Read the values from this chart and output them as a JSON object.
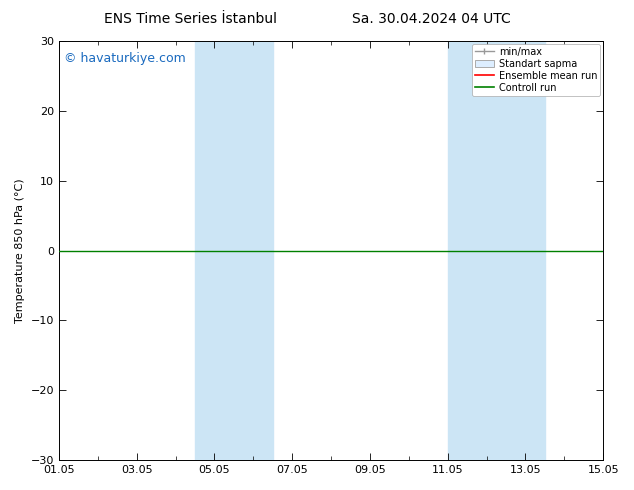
{
  "title_left": "ENS Time Series İstanbul",
  "title_right": "Sa. 30.04.2024 04 UTC",
  "ylabel": "Temperature 850 hPa (°C)",
  "watermark": "© havaturkiye.com",
  "ylim": [
    -30,
    30
  ],
  "yticks": [
    -30,
    -20,
    -10,
    0,
    10,
    20,
    30
  ],
  "xtick_labels": [
    "01.05",
    "03.05",
    "05.05",
    "07.05",
    "09.05",
    "11.05",
    "13.05",
    "15.05"
  ],
  "xtick_positions": [
    0,
    2,
    4,
    6,
    8,
    10,
    12,
    14
  ],
  "shaded_regions": [
    {
      "start": 3.5,
      "end": 5.5,
      "color": "#cce5f5"
    },
    {
      "start": 10.0,
      "end": 12.5,
      "color": "#cce5f5"
    }
  ],
  "legend_entries": [
    {
      "label": "min/max",
      "color": "#999999",
      "style": "errorbar"
    },
    {
      "label": "Standart sapma",
      "color": "#cccccc",
      "style": "box"
    },
    {
      "label": "Ensemble mean run",
      "color": "#ff0000",
      "style": "line"
    },
    {
      "label": "Controll run",
      "color": "#008000",
      "style": "line"
    }
  ],
  "zero_line_color": "#008000",
  "background_color": "#ffffff",
  "plot_background": "#ffffff",
  "title_fontsize": 10,
  "label_fontsize": 8,
  "tick_fontsize": 8,
  "watermark_color": "#1a6abf",
  "watermark_fontsize": 9
}
